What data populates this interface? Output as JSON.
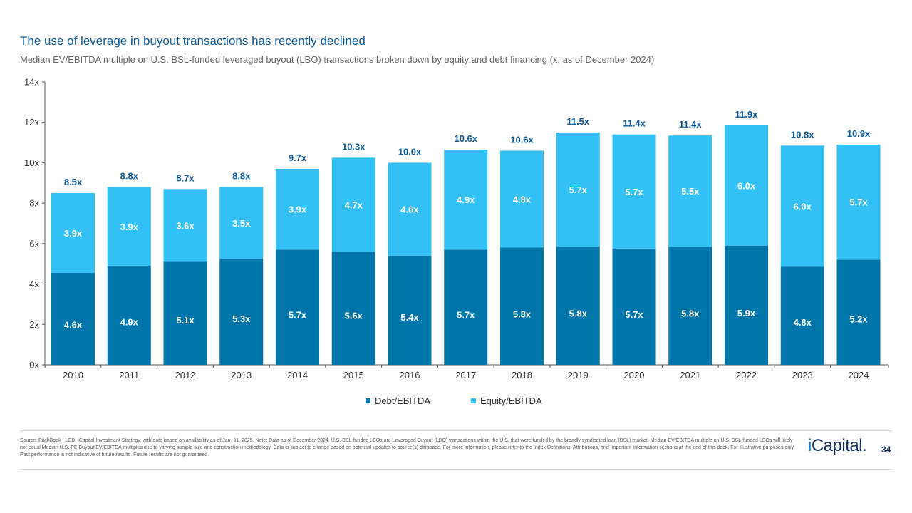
{
  "title": "The use of leverage in buyout transactions has recently declined",
  "subtitle": "Median EV/EBITDA multiple on U.S. BSL-funded leveraged buyout (LBO) transactions broken down by equity and debt financing (x, as of December 2024)",
  "colors": {
    "debt": "#0075aa",
    "equity": "#33c0f5",
    "total_label": "#0b5a9e",
    "axis": "#555555"
  },
  "chart_data": {
    "type": "bar",
    "stacked": true,
    "categories": [
      "2010",
      "2011",
      "2012",
      "2013",
      "2014",
      "2015",
      "2016",
      "2017",
      "2018",
      "2019",
      "2020",
      "2021",
      "2022",
      "2023",
      "2024"
    ],
    "series": [
      {
        "name": "Debt/EBITDA",
        "values": [
          4.6,
          4.9,
          5.1,
          5.3,
          5.7,
          5.6,
          5.4,
          5.7,
          5.8,
          5.8,
          5.7,
          5.8,
          5.9,
          4.8,
          5.2
        ]
      },
      {
        "name": "Equity/EBITDA",
        "values": [
          3.9,
          3.9,
          3.6,
          3.5,
          3.9,
          4.7,
          4.6,
          4.9,
          4.8,
          5.7,
          5.7,
          5.5,
          6.0,
          6.0,
          5.7
        ]
      }
    ],
    "totals": [
      8.5,
      8.8,
      8.7,
      8.8,
      9.7,
      10.3,
      10.0,
      10.6,
      10.6,
      11.5,
      11.4,
      11.4,
      11.9,
      10.8,
      10.9
    ],
    "bar_heights": [
      8.5,
      8.8,
      8.7,
      8.8,
      9.7,
      10.25,
      10.0,
      10.65,
      10.6,
      11.5,
      11.4,
      11.35,
      11.85,
      10.85,
      10.9
    ],
    "debt_heights": [
      4.55,
      4.9,
      5.1,
      5.25,
      5.7,
      5.6,
      5.4,
      5.7,
      5.8,
      5.85,
      5.75,
      5.85,
      5.9,
      4.85,
      5.2
    ],
    "value_suffix": "x",
    "ylim": [
      0,
      14
    ],
    "yticks": [
      0,
      2,
      4,
      6,
      8,
      10,
      12,
      14
    ],
    "ytick_labels": [
      "0x",
      "2x",
      "4x",
      "6x",
      "8x",
      "10x",
      "12x",
      "14x"
    ],
    "legend": [
      "Debt/EBITDA",
      "Equity/EBITDA"
    ],
    "legend_position": "bottom-center",
    "xlabel": "",
    "ylabel": ""
  },
  "footnote": "Source: PitchBook | LCD, iCapital Investment Strategy, with data based on availability as of Jan. 31, 2025. Note: Data as of December 2024. U.S. BSL-funded LBOs are Leveraged Buyout (LBO) transactions within the U.S. that were funded by the broadly syndicated loan (BSL) market. Median EV/EBITDA multiple on U.S. BSL-funded LBOs will likely not equal Median U.S. PE Buyout EV/EBITDA multiples due to varying sample size and construction methodology. Data is subject to change based on potential updates to source(s) database. For more information, please refer to the Index Definitions, Attributions, and Important Information sections at the end of this deck. For illustrative purposes only. Past performance is not indicative of future results. Future results are not guaranteed.",
  "logo": {
    "prefix": "i",
    "name": "Capital",
    "mark": "."
  },
  "page_number": "34"
}
